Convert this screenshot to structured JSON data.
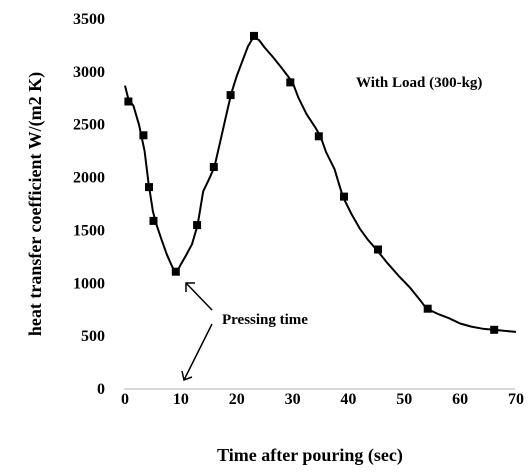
{
  "chart_data": {
    "type": "line",
    "xlabel": "Time after pouring (sec)",
    "ylabel": "heat  transfer  coefficient  W/(m2  K)",
    "xlim": [
      0,
      70
    ],
    "ylim": [
      0,
      3500
    ],
    "x_ticks": [
      0,
      10,
      20,
      30,
      40,
      50,
      60,
      70
    ],
    "y_ticks": [
      0,
      500,
      1000,
      1500,
      2000,
      2500,
      3000,
      3500
    ],
    "grid": false,
    "series": [
      {
        "name": "With Load (300-kg)",
        "curve": [
          [
            0,
            2870
          ],
          [
            0.6,
            2740
          ],
          [
            1.5,
            2680
          ],
          [
            2.5,
            2500
          ],
          [
            3.5,
            2250
          ],
          [
            4.2,
            1950
          ],
          [
            5,
            1680
          ],
          [
            5.6,
            1560
          ],
          [
            6.5,
            1420
          ],
          [
            7.5,
            1270
          ],
          [
            8.5,
            1150
          ],
          [
            9.2,
            1100
          ],
          [
            10,
            1180
          ],
          [
            11,
            1270
          ],
          [
            12,
            1370
          ],
          [
            13,
            1550
          ],
          [
            14,
            1870
          ],
          [
            15,
            1980
          ],
          [
            16,
            2100
          ],
          [
            17,
            2330
          ],
          [
            18,
            2560
          ],
          [
            19,
            2790
          ],
          [
            20,
            2960
          ],
          [
            21,
            3100
          ],
          [
            22,
            3240
          ],
          [
            23,
            3330
          ],
          [
            24,
            3300
          ],
          [
            25,
            3230
          ],
          [
            26.5,
            3140
          ],
          [
            28,
            3040
          ],
          [
            30,
            2900
          ],
          [
            31,
            2760
          ],
          [
            32.5,
            2600
          ],
          [
            34,
            2480
          ],
          [
            35,
            2390
          ],
          [
            36,
            2240
          ],
          [
            37.5,
            2080
          ],
          [
            39,
            1820
          ],
          [
            40.5,
            1660
          ],
          [
            42,
            1520
          ],
          [
            43.5,
            1410
          ],
          [
            45,
            1320
          ],
          [
            47,
            1190
          ],
          [
            49,
            1070
          ],
          [
            51,
            960
          ],
          [
            53,
            830
          ],
          [
            54,
            760
          ],
          [
            56,
            710
          ],
          [
            58,
            670
          ],
          [
            60,
            620
          ],
          [
            62,
            590
          ],
          [
            64,
            570
          ],
          [
            66,
            560
          ],
          [
            68,
            550
          ],
          [
            70,
            540
          ]
        ],
        "markers": [
          [
            0.6,
            2720
          ],
          [
            3.3,
            2400
          ],
          [
            4.3,
            1910
          ],
          [
            5.1,
            1590
          ],
          [
            9.1,
            1110
          ],
          [
            12.9,
            1550
          ],
          [
            15.9,
            2100
          ],
          [
            18.9,
            2780
          ],
          [
            23.1,
            3340
          ],
          [
            29.6,
            2900
          ],
          [
            34.7,
            2390
          ],
          [
            39.2,
            1820
          ],
          [
            45.3,
            1320
          ],
          [
            54.2,
            760
          ],
          [
            66.1,
            560
          ]
        ]
      }
    ],
    "annotations": [
      {
        "text": "With Load (300-kg)"
      },
      {
        "text": "Pressing time"
      }
    ]
  }
}
